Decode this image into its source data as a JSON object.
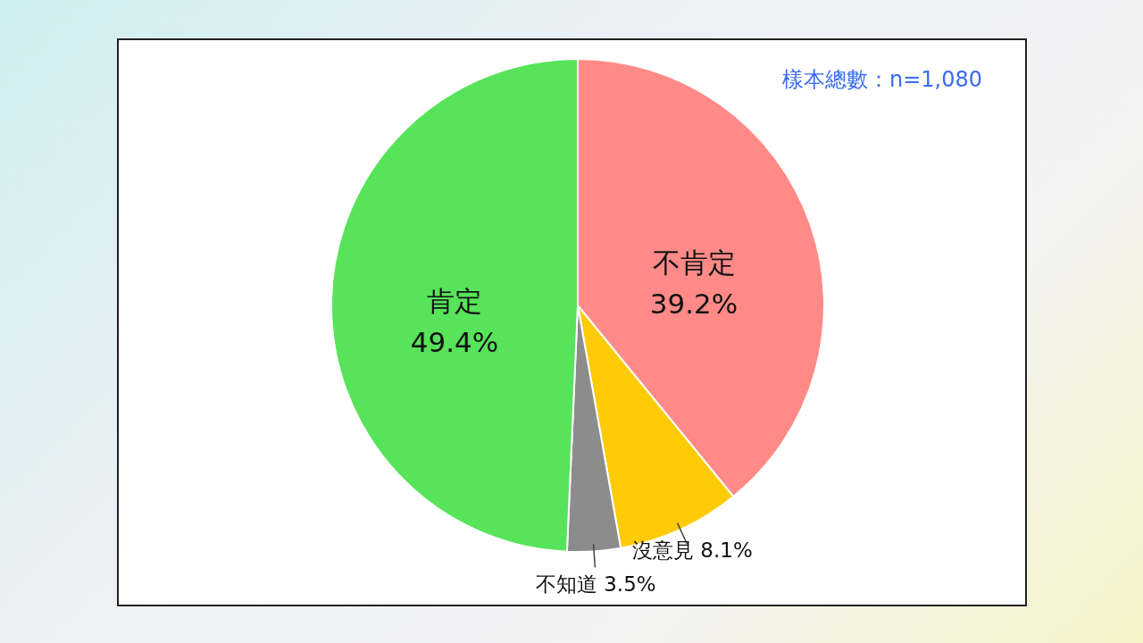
{
  "chart_data": {
    "type": "pie",
    "categories": [
      "不肯定",
      "沒意見",
      "不知道",
      "肯定"
    ],
    "values": [
      39.2,
      8.1,
      3.5,
      49.4
    ],
    "colors": [
      "#ff8a87",
      "#ffcb05",
      "#8c8c8c",
      "#57e35a"
    ],
    "value_labels": [
      "39.2%",
      "8.1%",
      "3.5%",
      "49.4%"
    ],
    "annotations": [
      "樣本總數：n=1,080"
    ]
  }
}
